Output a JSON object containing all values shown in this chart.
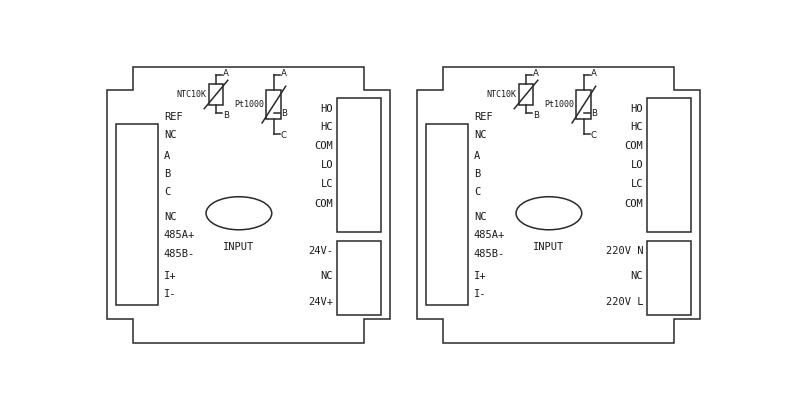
{
  "bg_color": "#ffffff",
  "line_color": "#2a2a2a",
  "text_color": "#1a1a1a",
  "lw": 1.1,
  "fs": 7.5,
  "fs_small": 6.0,
  "fs_sym_label": 6.2,
  "panels": [
    {
      "ox": 0.012,
      "power_labels": [
        "24V-",
        "NC",
        "24V+"
      ]
    },
    {
      "ox": 0.512,
      "power_labels": [
        "220V N",
        "NC",
        "220V L"
      ]
    }
  ]
}
